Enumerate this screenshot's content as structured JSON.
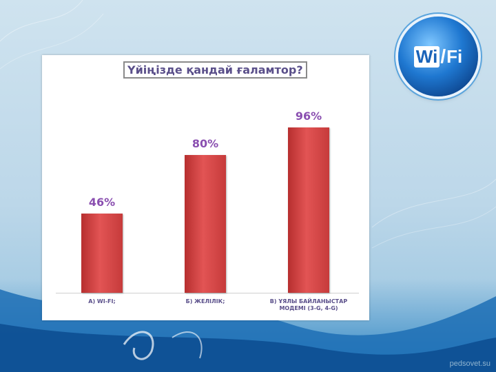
{
  "chart_data": {
    "type": "bar",
    "title": "Үйіңізде қандай ғаламтор?",
    "categories": [
      "А)  WI-FI;",
      "Б) ЖЕЛІЛІК;",
      "В) ҰЯЛЫ БАЙЛАНЫСТАР МОДЕМІ  (3-G, 4-G)"
    ],
    "values": [
      46,
      80,
      96
    ],
    "data_labels": [
      "46%",
      "80%",
      "96%"
    ],
    "ylim": [
      0,
      100
    ],
    "grid": false,
    "legend": "none",
    "bar_color": "#d64444"
  },
  "logo": {
    "wi": "Wi",
    "fi": "Fi"
  },
  "watermark": "pedsovet.su"
}
